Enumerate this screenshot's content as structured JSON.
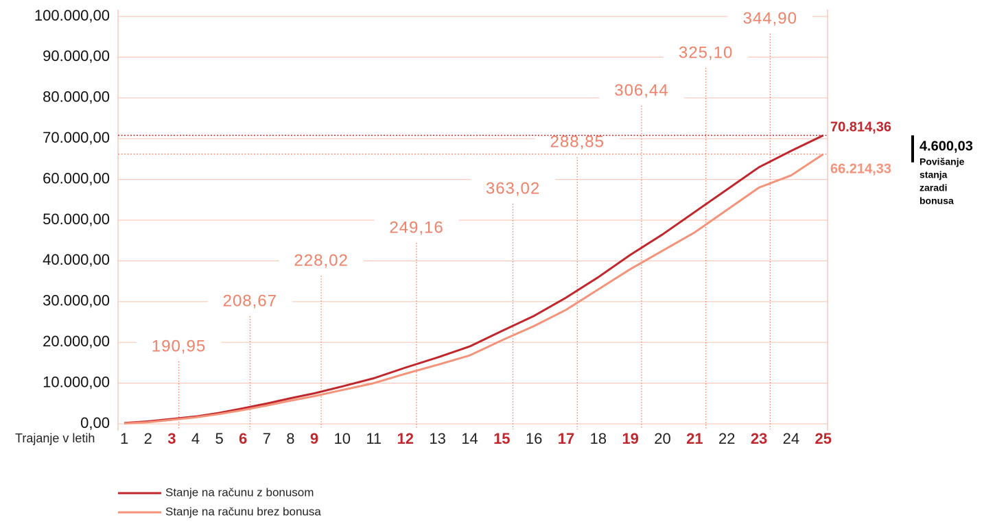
{
  "chart_data": {
    "type": "line",
    "x_label": "Trajanje v letih",
    "categories": [
      "1",
      "2",
      "3",
      "4",
      "5",
      "6",
      "7",
      "8",
      "9",
      "10",
      "11",
      "12",
      "13",
      "14",
      "15",
      "16",
      "17",
      "18",
      "19",
      "20",
      "21",
      "22",
      "23",
      "24",
      "25"
    ],
    "series": [
      {
        "name": "Stanje na računu z bonusom",
        "color": "#c0272d",
        "values": [
          200,
          600,
          1200,
          1800,
          2700,
          3800,
          5000,
          6300,
          7500,
          9200,
          11200,
          13800,
          16300,
          19000,
          22800,
          26500,
          31000,
          36000,
          41500,
          46500,
          52000,
          57500,
          63000,
          67000,
          70814.36
        ],
        "value_labels": [
          null,
          null,
          null,
          null,
          null,
          null,
          null,
          null,
          null,
          null,
          null,
          null,
          null,
          null,
          null,
          null,
          null,
          null,
          null,
          null,
          null,
          null,
          null,
          null,
          "70.814,36"
        ]
      },
      {
        "name": "Stanje na računu brez bonusa",
        "color": "#f4937a",
        "values": [
          100,
          400,
          1000,
          1600,
          2400,
          3400,
          4500,
          5700,
          6800,
          8300,
          10000,
          12300,
          14500,
          16800,
          20500,
          24000,
          28000,
          33000,
          38000,
          42500,
          47000,
          52500,
          58000,
          61000,
          66214.33
        ],
        "value_labels": [
          null,
          null,
          null,
          null,
          null,
          null,
          null,
          null,
          null,
          null,
          null,
          null,
          null,
          null,
          null,
          null,
          null,
          null,
          null,
          null,
          null,
          null,
          null,
          null,
          "66.214,33"
        ]
      }
    ],
    "ylim": [
      0,
      100000
    ],
    "yticks": [
      {
        "value": 0,
        "label": "0,00"
      },
      {
        "value": 10000,
        "label": "10.000,00"
      },
      {
        "value": 20000,
        "label": "20.000,00"
      },
      {
        "value": 30000,
        "label": "30.000,00"
      },
      {
        "value": 40000,
        "label": "40.000,00"
      },
      {
        "value": 50000,
        "label": "50.000,00"
      },
      {
        "value": 60000,
        "label": "60.000,00"
      },
      {
        "value": 70000,
        "label": "70.000,00"
      },
      {
        "value": 80000,
        "label": "80.000,00"
      },
      {
        "value": 90000,
        "label": "90.000,00"
      },
      {
        "value": 100000,
        "label": "100.000,00"
      }
    ],
    "grid": true,
    "annotations": [
      null,
      null,
      "190,95",
      null,
      null,
      "208,67",
      null,
      null,
      "228,02",
      null,
      null,
      "249,16",
      null,
      null,
      "363,02",
      null,
      "288,85",
      null,
      "306,44",
      null,
      "325,10",
      null,
      "344,90",
      null,
      null
    ],
    "difference": {
      "value": 4600.03,
      "label": "4.600,03",
      "text": [
        "Povišanje",
        "stanja",
        "zaradi",
        "bonusa"
      ]
    }
  }
}
